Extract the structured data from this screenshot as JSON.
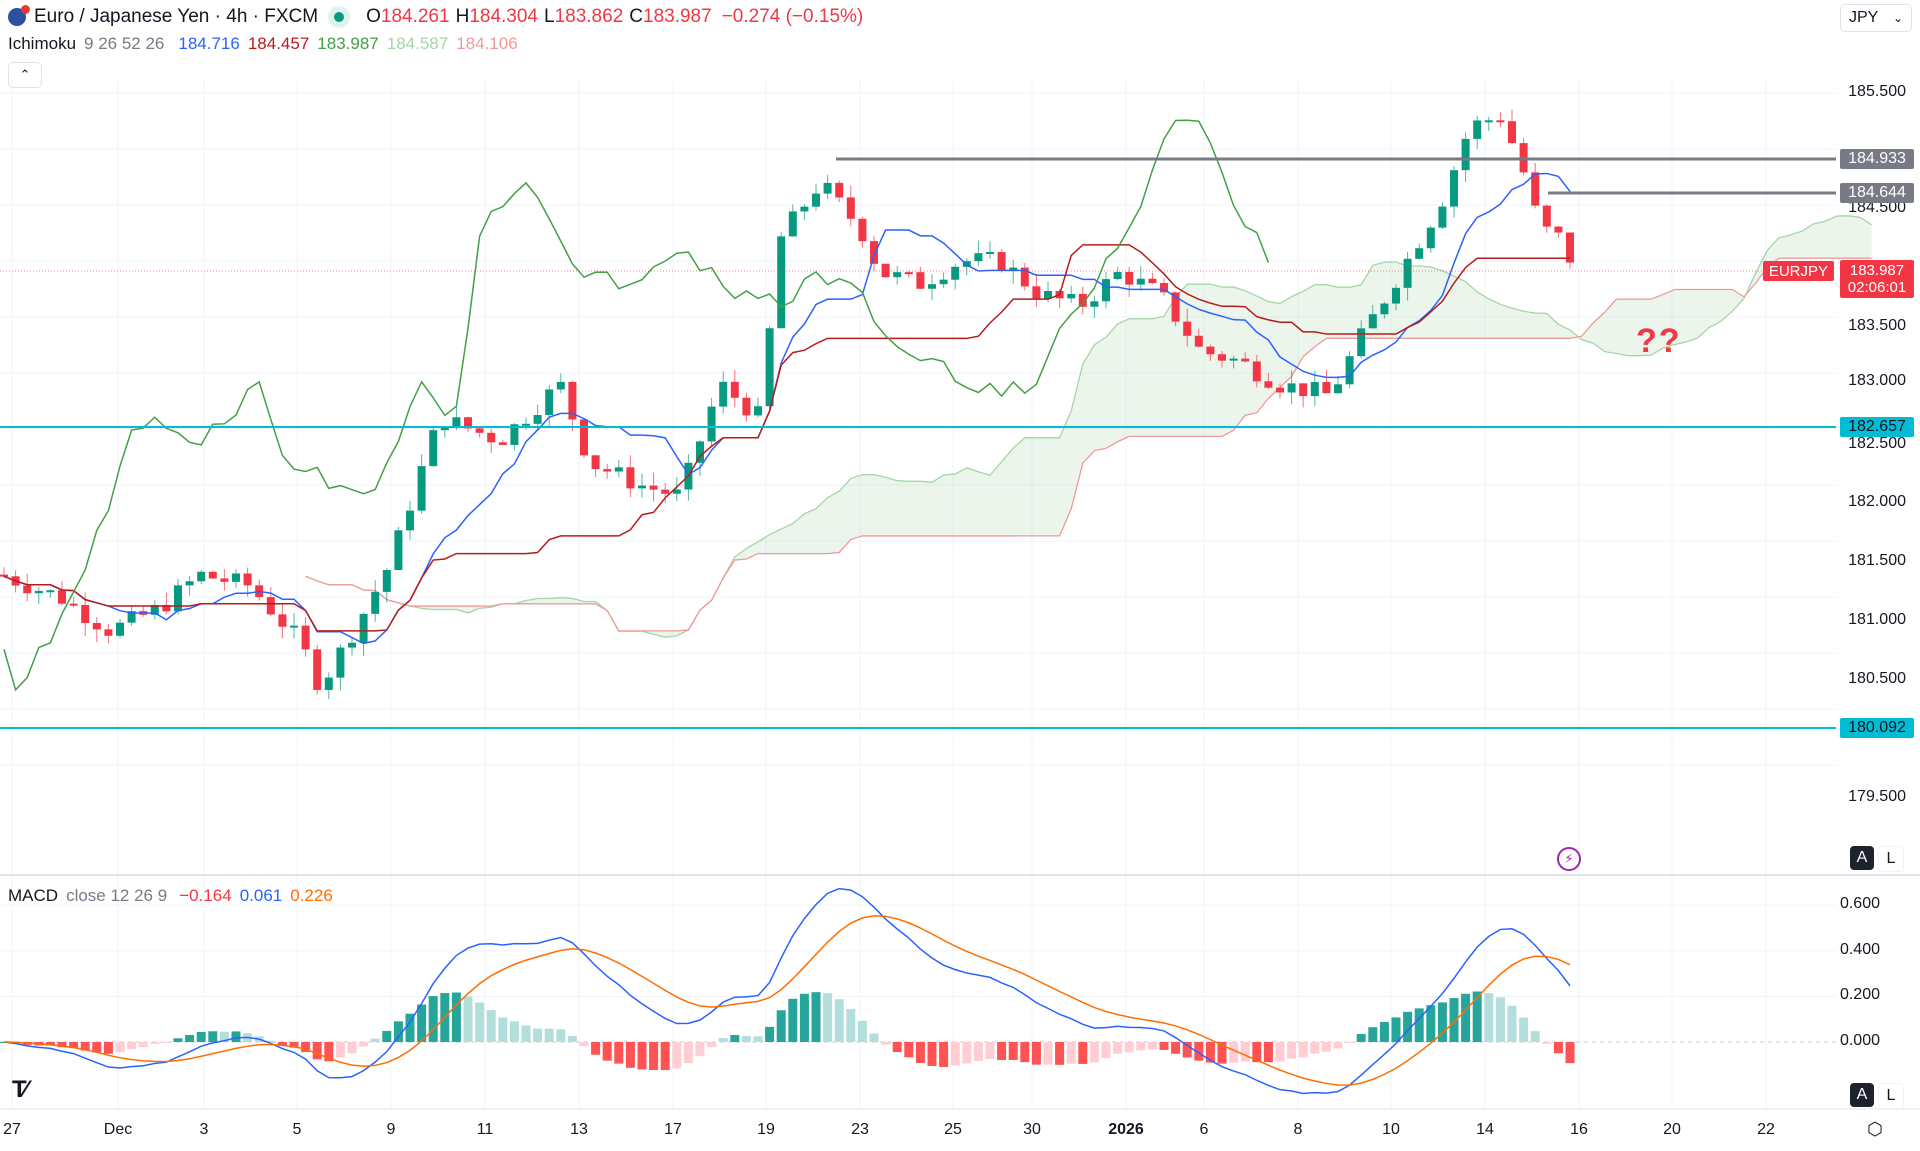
{
  "header": {
    "symbol_title": "Euro / Japanese Yen · 4h · FXCM",
    "ohlc": {
      "o_label": "O",
      "o": "184.261",
      "h_label": "H",
      "h": "184.304",
      "l_label": "L",
      "l": "183.862",
      "c_label": "C",
      "c": "183.987",
      "change": "−0.274 (−0.15%)"
    }
  },
  "currency_select": {
    "value": "JPY"
  },
  "ichimoku_legend": {
    "name": "Ichimoku",
    "params": "9 26 52 26",
    "conversion": "184.716",
    "base": "184.457",
    "lagging": "183.987",
    "lead_a": "184.587",
    "lead_b": "184.106"
  },
  "macd_legend": {
    "name": "MACD",
    "params": "close 12 26 9",
    "histogram": "−0.164",
    "macd": "0.061",
    "signal": "0.226"
  },
  "annotation": "??",
  "colors": {
    "up": "#089981",
    "down": "#f23645",
    "conversion": "#2962ff",
    "base": "#b71c1c",
    "lagging": "#43a047",
    "lead_a": "#a5d6a7",
    "lead_b": "#ef9a9a",
    "hline_cyan": "#00bcd4",
    "hline_gray": "#787b86",
    "macd": "#2962ff",
    "signal": "#ff6d00"
  },
  "price_axis": {
    "labels": [
      "185.500",
      "184.500",
      "183.500",
      "183.000",
      "182.500",
      "182.000",
      "181.500",
      "181.000",
      "180.500",
      "179.500"
    ]
  },
  "price_tags": {
    "res1": "184.933",
    "res2": "184.644",
    "support1": "182.657",
    "support2": "180.092",
    "symbol": "EURJPY",
    "last": "183.987",
    "countdown": "02:06:01"
  },
  "macd_axis": {
    "labels": [
      "0.600",
      "0.400",
      "0.200",
      "0.000"
    ]
  },
  "time_axis": {
    "labels": [
      "27",
      "Dec",
      "3",
      "5",
      "9",
      "11",
      "13",
      "17",
      "19",
      "23",
      "25",
      "30",
      "2026",
      "6",
      "8",
      "10",
      "14",
      "16",
      "20",
      "22"
    ]
  },
  "scale_buttons": {
    "auto": "A",
    "log": "L"
  },
  "chart_data": {
    "type": "line",
    "title": "Euro / Japanese Yen · 4h · FXCM",
    "xlabel": "",
    "ylabel": "JPY",
    "ylim": [
      179.3,
      185.9
    ],
    "x": [
      "27",
      "Dec",
      "3",
      "5",
      "9",
      "11",
      "13",
      "17",
      "19",
      "23",
      "25",
      "30",
      "2026",
      "6",
      "8",
      "10",
      "14",
      "16"
    ],
    "candles_close": [
      181.2,
      180.9,
      181.3,
      180.6,
      181.1,
      182.6,
      182.5,
      182.1,
      183.2,
      184.7,
      184.1,
      184.0,
      183.8,
      183.2,
      183.0,
      184.1,
      185.4,
      183.99
    ],
    "horizontal_levels": [
      184.933,
      184.644,
      182.657,
      180.092
    ],
    "last_price": 183.987,
    "ichimoku": {
      "conversion": 184.716,
      "base": 184.457,
      "lagging": 183.987,
      "lead_a": 184.587,
      "lead_b": 184.106
    },
    "macd": {
      "histogram": -0.164,
      "macd": 0.061,
      "signal": 0.226,
      "ylim": [
        -0.2,
        0.65
      ]
    }
  }
}
